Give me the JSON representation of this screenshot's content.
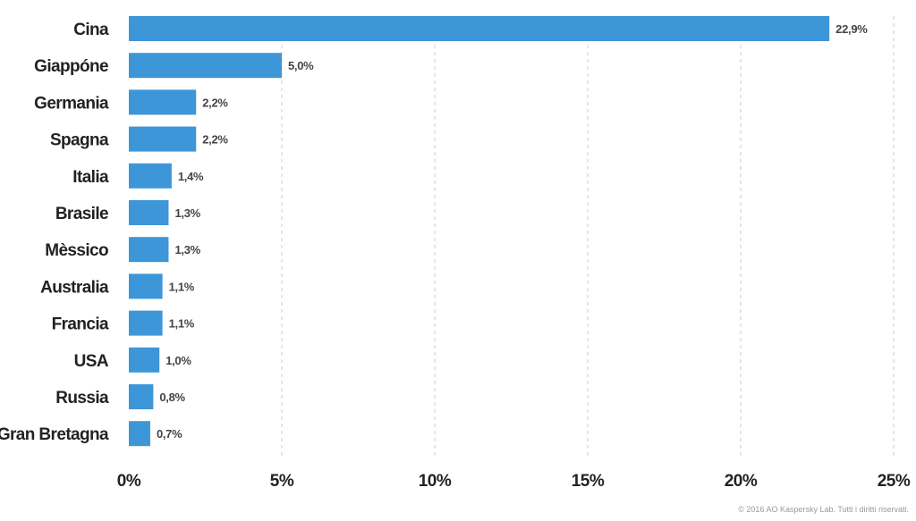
{
  "chart_data": {
    "type": "bar",
    "orientation": "horizontal",
    "categories": [
      "Cina",
      "Giappóne",
      "Germania",
      "Spagna",
      "Italia",
      "Brasile",
      "Mèssico",
      "Australia",
      "Francia",
      "USA",
      "Russia",
      "Gran Bretagna"
    ],
    "values": [
      22.9,
      5.0,
      2.2,
      2.2,
      1.4,
      1.3,
      1.3,
      1.1,
      1.1,
      1.0,
      0.8,
      0.7
    ],
    "value_labels": [
      "22,9%",
      "5,0%",
      "2,2%",
      "2,2%",
      "1,4%",
      "1,3%",
      "1,3%",
      "1,1%",
      "1,1%",
      "1,0%",
      "0,8%",
      "0,7%"
    ],
    "xlim": [
      0,
      25
    ],
    "ticks": [
      0,
      5,
      10,
      15,
      20,
      25
    ],
    "tick_labels": [
      "0%",
      "5%",
      "10%",
      "15%",
      "20%",
      "25%"
    ],
    "grid": "vertical dashed",
    "bar_color": "#3d96d8"
  },
  "footer": {
    "copyright": "© 2016 AO Kaspersky Lab. Tutti i diritti riservati."
  }
}
